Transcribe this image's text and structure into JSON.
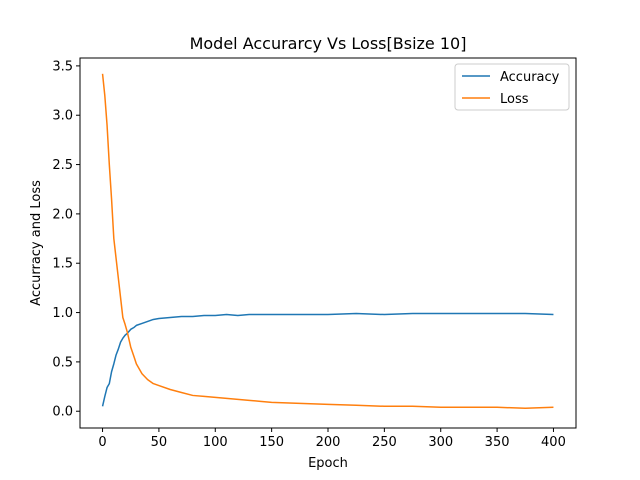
{
  "chart_data": {
    "type": "line",
    "title": "Model Accurarcy Vs Loss[Bsize 10]",
    "xlabel": "Epoch",
    "ylabel": "Accurracy and Loss",
    "xlim": [
      -20,
      420
    ],
    "ylim": [
      -0.17,
      3.58
    ],
    "xticks": [
      0,
      50,
      100,
      150,
      200,
      250,
      300,
      350,
      400
    ],
    "yticks": [
      0.0,
      0.5,
      1.0,
      1.5,
      2.0,
      2.5,
      3.0,
      3.5
    ],
    "xtick_labels": [
      "0",
      "50",
      "100",
      "150",
      "200",
      "250",
      "300",
      "350",
      "400"
    ],
    "ytick_labels": [
      "0.0",
      "0.5",
      "1.0",
      "1.5",
      "2.0",
      "2.5",
      "3.0",
      "3.5"
    ],
    "grid": false,
    "legend_position": "top-right",
    "series": [
      {
        "name": "Accuracy",
        "color": "#1f77b4",
        "x": [
          0,
          2,
          4,
          6,
          8,
          10,
          12,
          14,
          16,
          18,
          20,
          22,
          25,
          28,
          30,
          35,
          40,
          45,
          50,
          60,
          70,
          80,
          90,
          100,
          110,
          120,
          130,
          140,
          150,
          175,
          200,
          225,
          250,
          275,
          300,
          325,
          350,
          375,
          400
        ],
        "values": [
          0.05,
          0.15,
          0.24,
          0.28,
          0.4,
          0.48,
          0.57,
          0.63,
          0.7,
          0.74,
          0.77,
          0.79,
          0.83,
          0.85,
          0.87,
          0.89,
          0.91,
          0.93,
          0.94,
          0.95,
          0.96,
          0.96,
          0.97,
          0.97,
          0.98,
          0.97,
          0.98,
          0.98,
          0.98,
          0.98,
          0.98,
          0.99,
          0.98,
          0.99,
          0.99,
          0.99,
          0.99,
          0.99,
          0.98
        ]
      },
      {
        "name": "Loss",
        "color": "#ff7f0e",
        "x": [
          0,
          2,
          4,
          6,
          8,
          10,
          12,
          14,
          16,
          18,
          20,
          22,
          25,
          28,
          30,
          35,
          40,
          45,
          50,
          60,
          70,
          80,
          90,
          100,
          110,
          120,
          130,
          140,
          150,
          175,
          200,
          225,
          250,
          275,
          300,
          325,
          350,
          375,
          400
        ],
        "values": [
          3.42,
          3.2,
          2.9,
          2.5,
          2.15,
          1.75,
          1.55,
          1.35,
          1.15,
          0.95,
          0.88,
          0.8,
          0.65,
          0.55,
          0.48,
          0.38,
          0.32,
          0.28,
          0.26,
          0.22,
          0.19,
          0.16,
          0.15,
          0.14,
          0.13,
          0.12,
          0.11,
          0.1,
          0.09,
          0.08,
          0.07,
          0.06,
          0.05,
          0.05,
          0.04,
          0.04,
          0.04,
          0.03,
          0.04
        ]
      }
    ]
  }
}
